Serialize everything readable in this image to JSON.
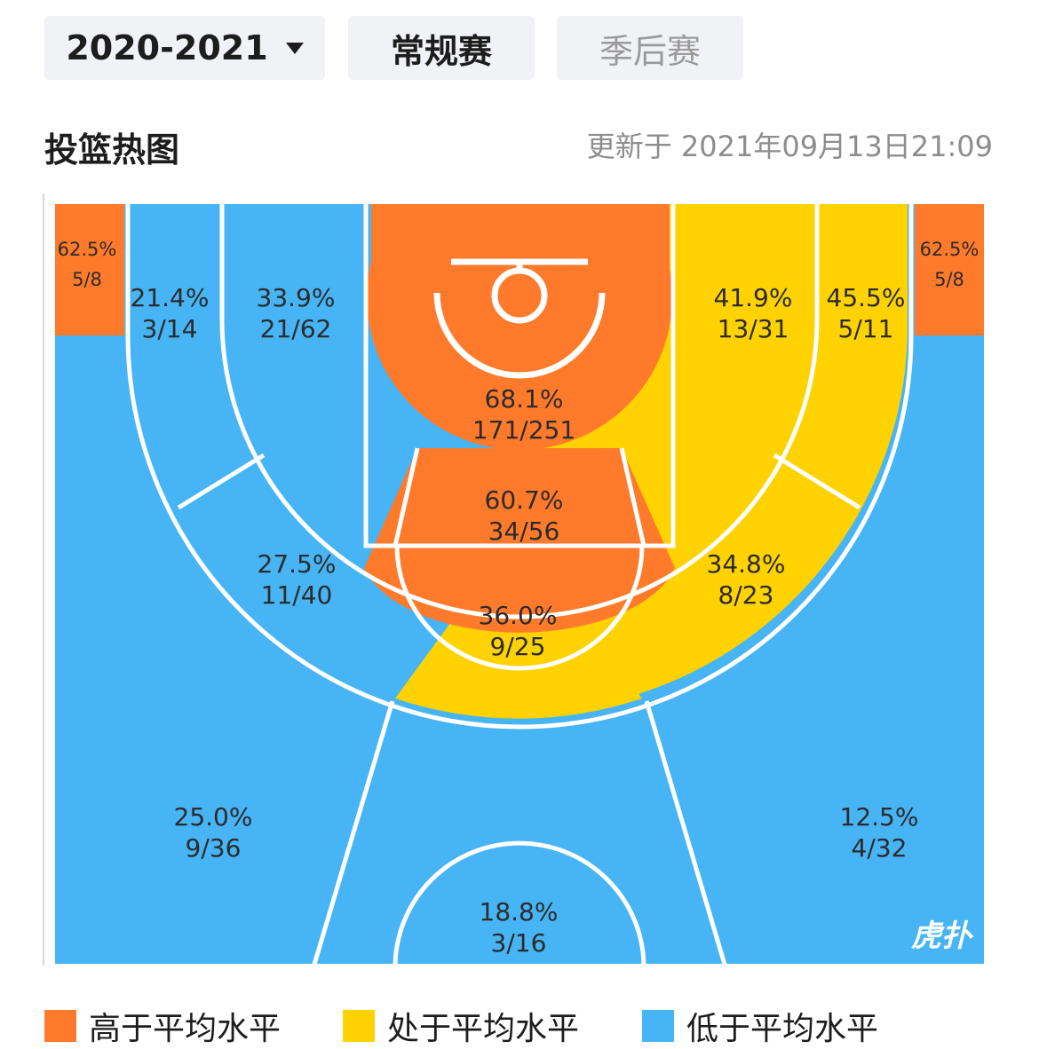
{
  "tabs": {
    "season": "2020-2021",
    "regular": "常规赛",
    "playoff": "季后赛"
  },
  "section": {
    "title": "投篮热图",
    "updated": "更新于 2021年09月13日21:09"
  },
  "colors": {
    "above": "#ff7a2a",
    "average": "#ffd200",
    "below": "#46b4f5"
  },
  "zones": [
    {
      "id": "left-corner",
      "pct": "62.5%",
      "frac": "5/8",
      "level": "above"
    },
    {
      "id": "right-corner",
      "pct": "62.5%",
      "frac": "5/8",
      "level": "above"
    },
    {
      "id": "left-baseline-long2",
      "pct": "21.4%",
      "frac": "3/14",
      "level": "below"
    },
    {
      "id": "left-mid-baseline",
      "pct": "33.9%",
      "frac": "21/62",
      "level": "below"
    },
    {
      "id": "restricted-area",
      "pct": "68.1%",
      "frac": "171/251",
      "level": "above"
    },
    {
      "id": "right-mid-baseline",
      "pct": "41.9%",
      "frac": "13/31",
      "level": "average"
    },
    {
      "id": "right-baseline-long2",
      "pct": "45.5%",
      "frac": "5/11",
      "level": "average"
    },
    {
      "id": "paint",
      "pct": "60.7%",
      "frac": "34/56",
      "level": "above"
    },
    {
      "id": "left-elbow",
      "pct": "27.5%",
      "frac": "11/40",
      "level": "below"
    },
    {
      "id": "right-elbow",
      "pct": "34.8%",
      "frac": "8/23",
      "level": "average"
    },
    {
      "id": "top-key",
      "pct": "36.0%",
      "frac": "9/25",
      "level": "average"
    },
    {
      "id": "left-wing-three",
      "pct": "25.0%",
      "frac": "9/36",
      "level": "below"
    },
    {
      "id": "right-wing-three",
      "pct": "12.5%",
      "frac": "4/32",
      "level": "below"
    },
    {
      "id": "top-three",
      "pct": "18.8%",
      "frac": "3/16",
      "level": "below"
    }
  ],
  "watermark": "虎扑",
  "legend": {
    "above": "高于平均水平",
    "average": "处于平均水平",
    "below": "低于平均水平"
  }
}
